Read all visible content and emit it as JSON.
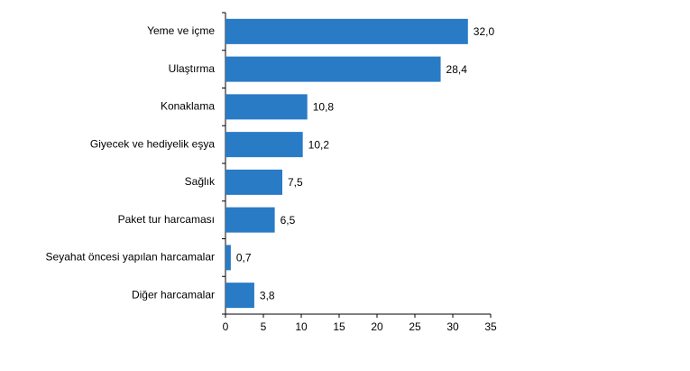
{
  "chart_data": {
    "type": "bar",
    "orientation": "horizontal",
    "categories": [
      "Yeme ve içme",
      "Ulaştırma",
      "Konaklama",
      "Giyecek ve hediyelik eşya",
      "Sağlık",
      "Paket tur harcaması",
      "Seyahat öncesi yapılan harcamalar",
      "Diğer harcamalar"
    ],
    "values": [
      32.0,
      28.4,
      10.8,
      10.2,
      7.5,
      6.5,
      0.7,
      3.8
    ],
    "value_labels": [
      "32,0",
      "28,4",
      "10,8",
      "10,2",
      "7,5",
      "6,5",
      "0,7",
      "3,8"
    ],
    "color": "#2a7bc6",
    "xlim": [
      0,
      35
    ],
    "xticks": [
      0,
      5,
      10,
      15,
      20,
      25,
      30,
      35
    ],
    "grid": false
  }
}
